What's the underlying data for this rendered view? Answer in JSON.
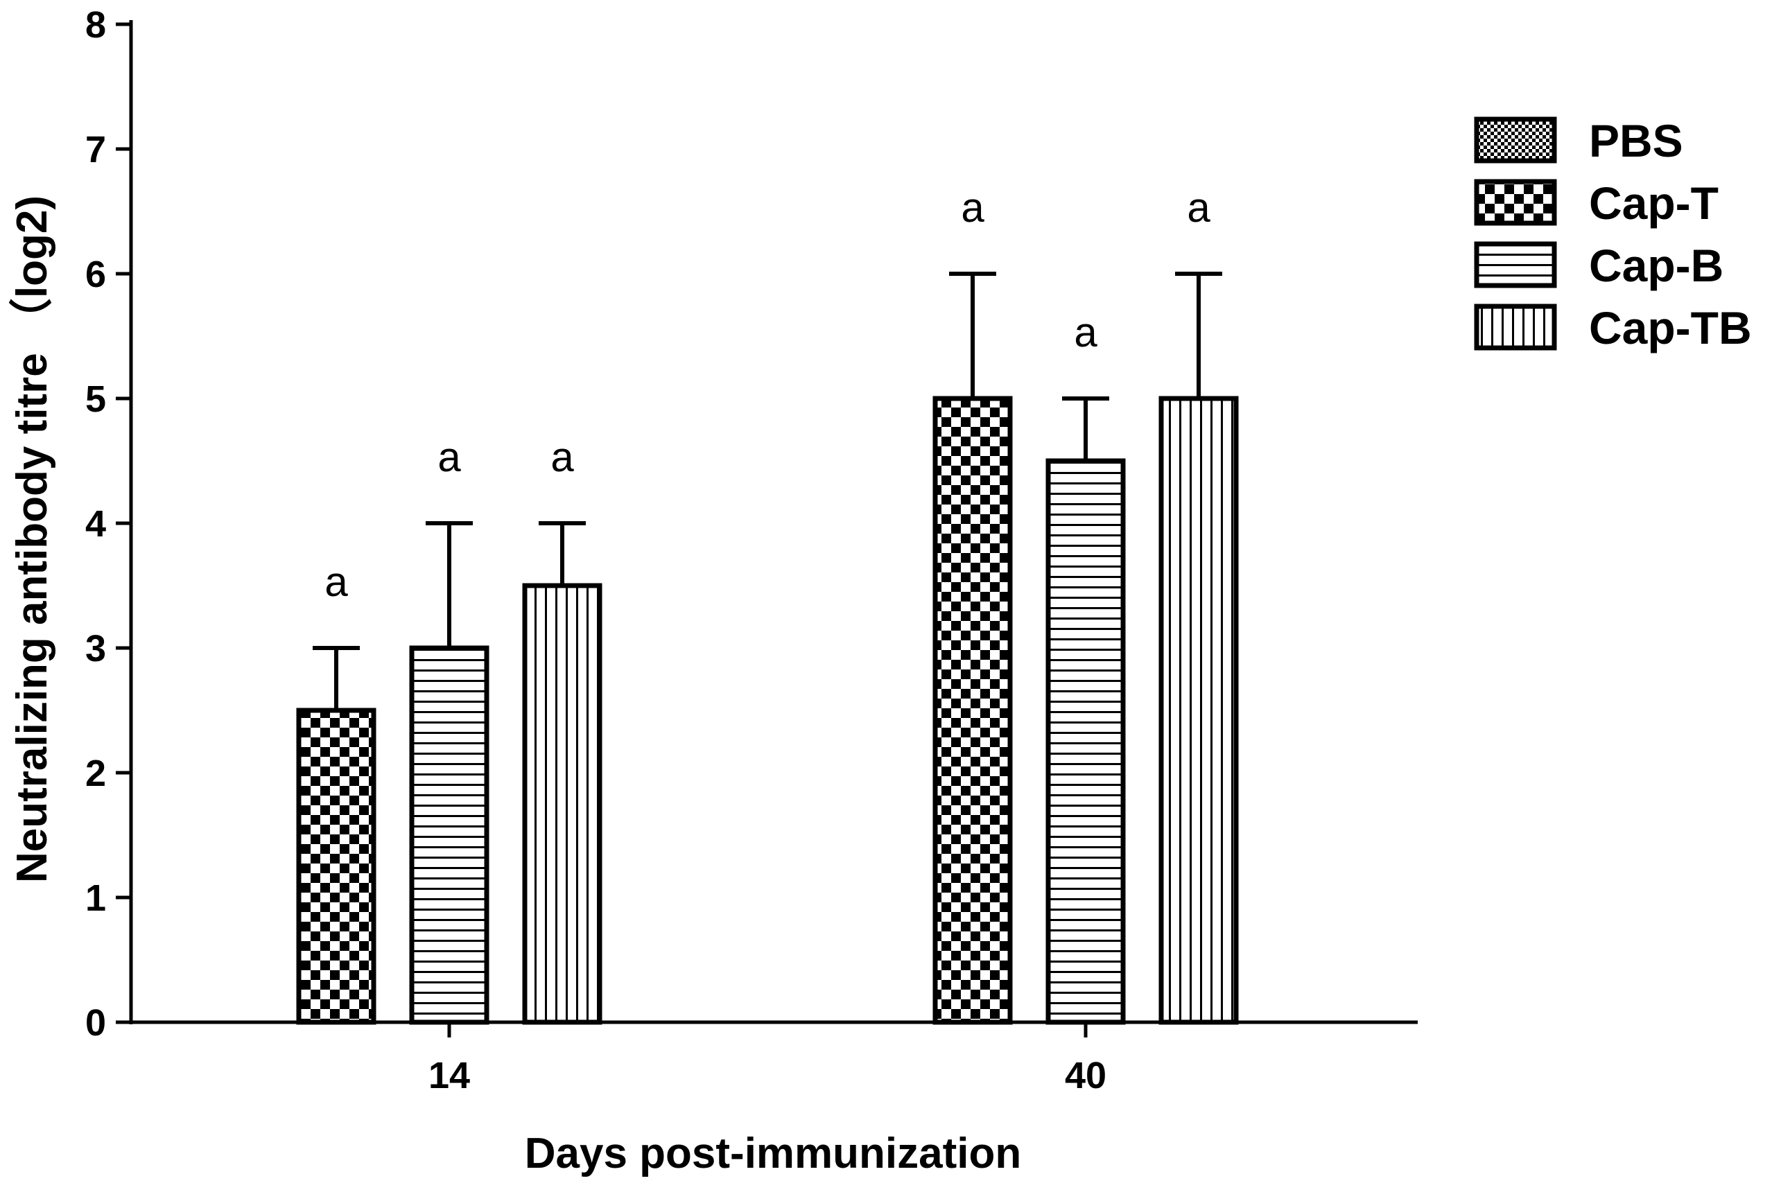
{
  "chart_data": {
    "type": "bar",
    "title": "",
    "xlabel": "Days post-immunization",
    "ylabel": "Neutralizing antibody titre （log2)",
    "ylim": [
      0,
      8
    ],
    "yticks": [
      "0",
      "1",
      "2",
      "3",
      "4",
      "5",
      "6",
      "7",
      "8"
    ],
    "categories": [
      "14",
      "40"
    ],
    "legend": {
      "placement": "right",
      "entries": [
        {
          "name": "PBS",
          "pattern": "fine-checker"
        },
        {
          "name": "Cap-T",
          "pattern": "checker"
        },
        {
          "name": "Cap-B",
          "pattern": "horizontal-lines"
        },
        {
          "name": "Cap-TB",
          "pattern": "vertical-lines"
        }
      ]
    },
    "series": [
      {
        "name": "PBS",
        "values": [
          0,
          0
        ],
        "error_upper": [
          0,
          0
        ],
        "labels": [
          "",
          ""
        ]
      },
      {
        "name": "Cap-T",
        "values": [
          2.5,
          5.0
        ],
        "error_upper": [
          0.5,
          1.0
        ],
        "labels": [
          "a",
          "a"
        ]
      },
      {
        "name": "Cap-B",
        "values": [
          3.0,
          4.5
        ],
        "error_upper": [
          1.0,
          0.5
        ],
        "labels": [
          "a",
          "a"
        ]
      },
      {
        "name": "Cap-TB",
        "values": [
          3.5,
          5.0
        ],
        "error_upper": [
          0.5,
          1.0
        ],
        "labels": [
          "a",
          "a"
        ]
      }
    ],
    "grid": false
  },
  "colors": {
    "ink": "#000000",
    "background": "#ffffff"
  }
}
